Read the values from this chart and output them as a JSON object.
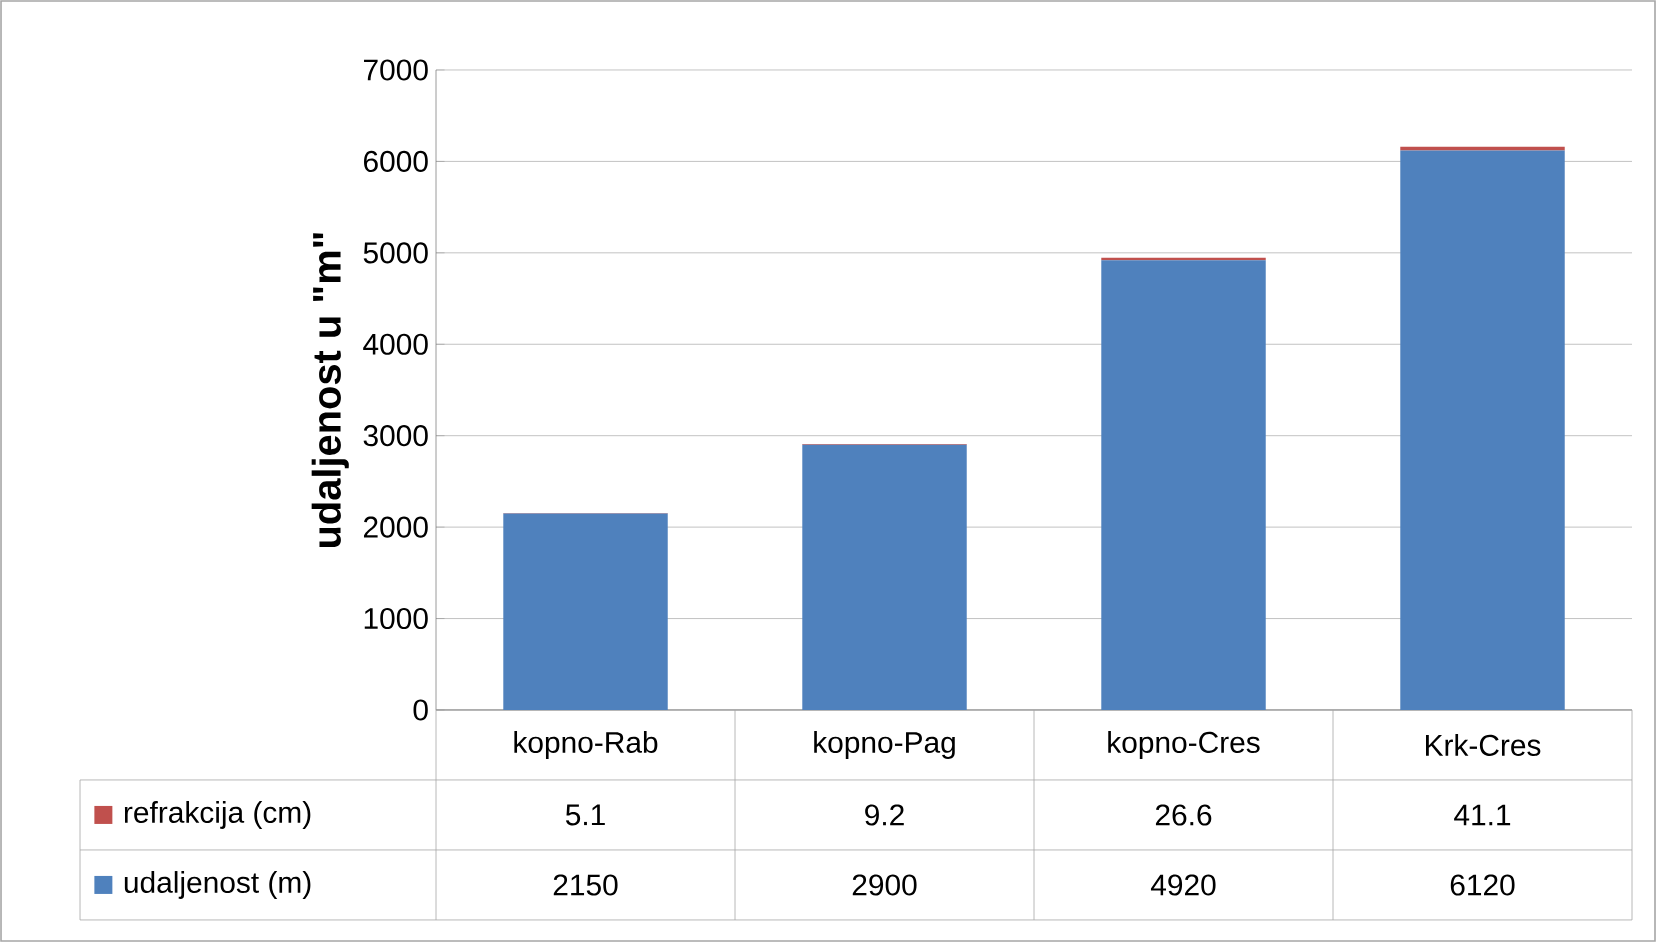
{
  "chart_data": {
    "type": "bar",
    "stacked": true,
    "ylabel": "udaljenost u \"m\"",
    "categories": [
      "kopno-Rab",
      "kopno-Pag",
      "kopno-Cres",
      "Krk-Cres"
    ],
    "series": [
      {
        "name": "udaljenost (m)",
        "color": "#4f81bd",
        "values": [
          2150,
          2900,
          4920,
          6120
        ]
      },
      {
        "name": "refrakcija (cm)",
        "color": "#c0504d",
        "values": [
          5.1,
          9.2,
          26.6,
          41.1
        ]
      }
    ],
    "ylim": [
      0,
      7000
    ],
    "yticks": [
      0,
      1000,
      2000,
      3000,
      4000,
      5000,
      6000,
      7000
    ],
    "grid": "y",
    "legend": "bottom",
    "data_labels": true
  }
}
